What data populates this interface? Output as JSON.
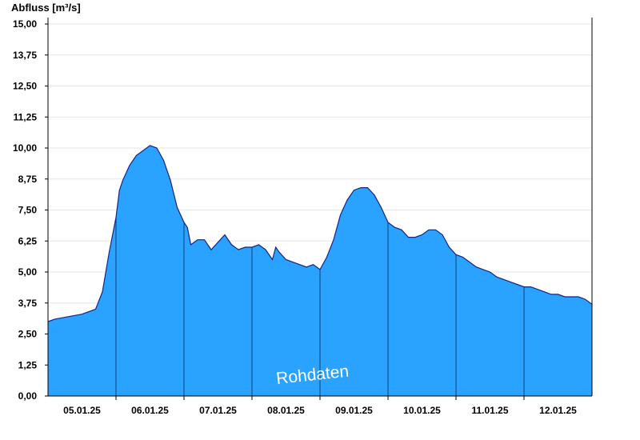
{
  "chart_data": {
    "type": "area",
    "ylabel": "Abfluss [m³/s]",
    "ylim": [
      0,
      15
    ],
    "yticks": [
      "15,00",
      "13,75",
      "12,50",
      "11,25",
      "10,00",
      "8,75",
      "7,50",
      "6,25",
      "5,00",
      "3,75",
      "2,50",
      "1,25",
      "0,00"
    ],
    "ytick_values": [
      15,
      13.75,
      12.5,
      11.25,
      10,
      8.75,
      7.5,
      6.25,
      5,
      3.75,
      2.5,
      1.25,
      0
    ],
    "xlim": [
      4.0,
      12.0
    ],
    "xticks": [
      "05.01.25",
      "06.01.25",
      "07.01.25",
      "08.01.25",
      "09.01.25",
      "10.01.25",
      "11.01.25",
      "12.01.25"
    ],
    "day_boundaries": [
      5,
      6,
      7,
      8,
      9,
      10,
      11
    ],
    "grid": true,
    "annotation": "Rohdaten",
    "colors": {
      "fill": "#29a3ff",
      "line": "#1a237e",
      "grid": "#e6e6e6"
    },
    "x": [
      4.0,
      4.1,
      4.3,
      4.5,
      4.7,
      4.8,
      4.9,
      5.0,
      5.05,
      5.1,
      5.2,
      5.3,
      5.4,
      5.5,
      5.6,
      5.7,
      5.8,
      5.9,
      6.0,
      6.05,
      6.1,
      6.2,
      6.3,
      6.4,
      6.5,
      6.6,
      6.7,
      6.8,
      6.9,
      7.0,
      7.1,
      7.2,
      7.3,
      7.35,
      7.4,
      7.5,
      7.6,
      7.7,
      7.8,
      7.9,
      8.0,
      8.1,
      8.2,
      8.3,
      8.4,
      8.5,
      8.6,
      8.7,
      8.8,
      8.9,
      9.0,
      9.1,
      9.2,
      9.3,
      9.4,
      9.5,
      9.6,
      9.7,
      9.8,
      9.9,
      10.0,
      10.1,
      10.2,
      10.3,
      10.4,
      10.5,
      10.6,
      10.7,
      10.8,
      10.9,
      11.0,
      11.1,
      11.2,
      11.3,
      11.4,
      11.5,
      11.6,
      11.7,
      11.8,
      11.9,
      12.0
    ],
    "y": [
      3.0,
      3.1,
      3.2,
      3.3,
      3.5,
      4.2,
      5.8,
      7.2,
      8.3,
      8.7,
      9.3,
      9.7,
      9.9,
      10.1,
      10.0,
      9.5,
      8.7,
      7.6,
      7.0,
      6.8,
      6.1,
      6.3,
      6.3,
      5.9,
      6.2,
      6.5,
      6.1,
      5.9,
      6.0,
      6.0,
      6.1,
      5.9,
      5.5,
      6.0,
      5.8,
      5.5,
      5.4,
      5.3,
      5.2,
      5.3,
      5.1,
      5.6,
      6.3,
      7.3,
      7.9,
      8.3,
      8.4,
      8.4,
      8.1,
      7.6,
      7.0,
      6.8,
      6.7,
      6.4,
      6.4,
      6.5,
      6.7,
      6.7,
      6.5,
      6.0,
      5.7,
      5.6,
      5.4,
      5.2,
      5.1,
      5.0,
      4.8,
      4.7,
      4.6,
      4.5,
      4.4,
      4.4,
      4.3,
      4.2,
      4.1,
      4.1,
      4.0,
      4.0,
      4.0,
      3.9,
      3.7
    ]
  }
}
